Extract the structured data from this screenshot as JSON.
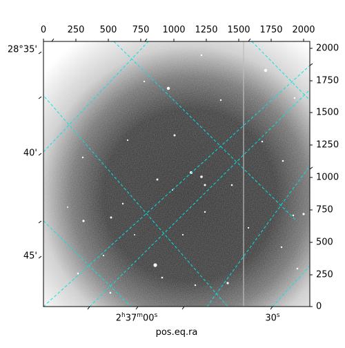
{
  "image": {
    "subject": "astronomical CCD frame with WCS coordinate grid overlay",
    "colormap": "grayscale",
    "grid_color": "#00e5e5"
  },
  "axes": {
    "xlabel": "pos.eq.ra",
    "top_ticks": [
      "0",
      "250",
      "500",
      "750",
      "1000",
      "1250",
      "1500",
      "1750",
      "2000"
    ],
    "right_ticks": [
      "2000",
      "1750",
      "1500",
      "1250",
      "1000",
      "750",
      "500",
      "250",
      "0"
    ],
    "left_ticks": [
      "28°35'",
      "40'",
      "45'"
    ],
    "bottom_ticks": [
      {
        "h": "2",
        "hsup": "h",
        "m": "37",
        "msup": "m",
        "s": "00",
        "ssup": "s"
      },
      {
        "s": "30",
        "ssup": "s"
      }
    ]
  }
}
